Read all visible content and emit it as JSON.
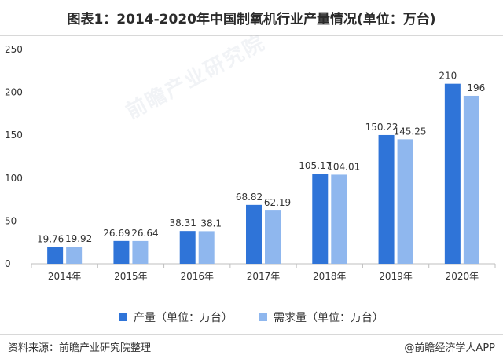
{
  "title": "图表1：2014-2020年中国制氧机行业产量情况(单位：万台)",
  "footer": {
    "source": "资料来源：前瞻产业研究院整理",
    "credit": "@前瞻经济学人APP"
  },
  "watermark": "前瞻产业研究院",
  "colors": {
    "production": "#2f74d8",
    "demand": "#8fb7ee",
    "axis": "#bfbfbf"
  },
  "chart_data": {
    "type": "bar",
    "categories": [
      "2014年",
      "2015年",
      "2016年",
      "2017年",
      "2018年",
      "2019年",
      "2020年"
    ],
    "series": [
      {
        "name": "产量（单位：万台）",
        "values": [
          19.76,
          26.69,
          38.31,
          68.82,
          105.17,
          150.22,
          210
        ]
      },
      {
        "name": "需求量（单位：万台）",
        "values": [
          19.92,
          26.64,
          38.1,
          62.19,
          104.01,
          145.25,
          196
        ]
      }
    ],
    "value_labels": [
      [
        "19.76",
        "26.69",
        "38.31",
        "68.82",
        "105.17",
        "150.22",
        "210"
      ],
      [
        "19.92",
        "26.64",
        "38.1",
        "62.19",
        "104.01",
        "145.25",
        "196"
      ]
    ],
    "ylim": [
      0,
      250
    ],
    "yticks": [
      "0",
      "50",
      "100",
      "150",
      "200",
      "250"
    ],
    "grid": false,
    "legend_position": "bottom"
  }
}
